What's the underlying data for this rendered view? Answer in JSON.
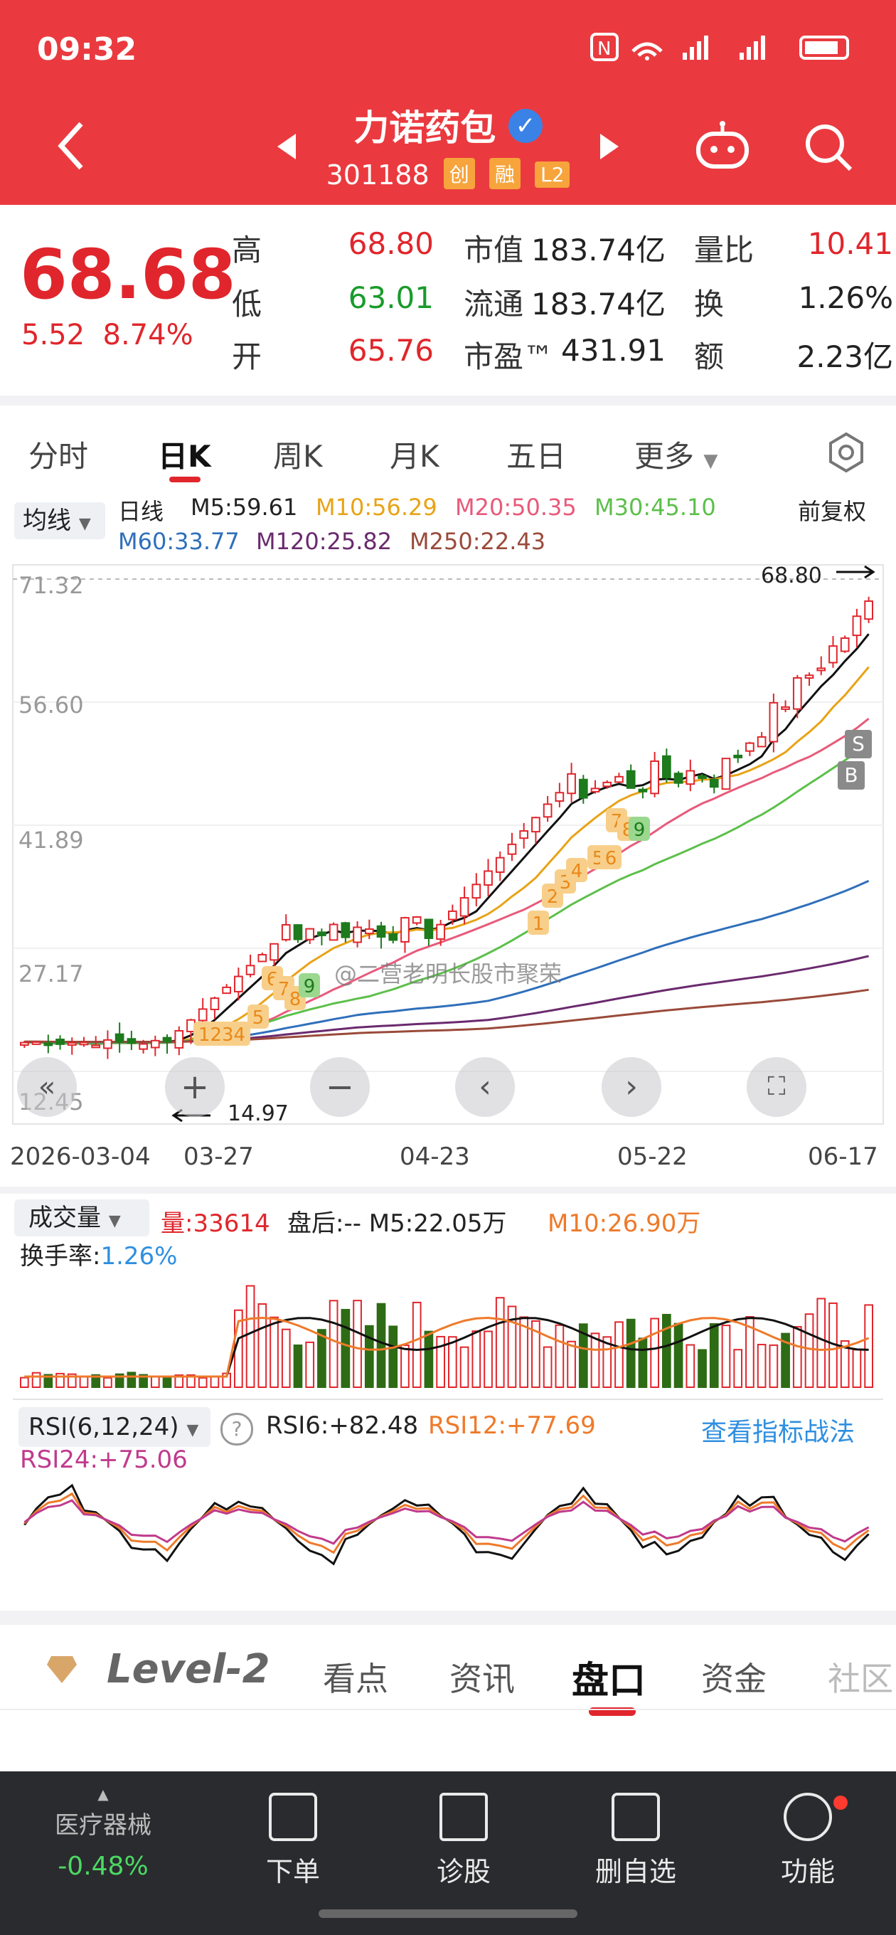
{
  "status": {
    "time": "09:32"
  },
  "header": {
    "name": "力诺药包",
    "code": "301188",
    "tags": [
      "创",
      "融",
      "L2"
    ]
  },
  "quote": {
    "price": "68.68",
    "change": "5.52",
    "change_pct": "8.74%",
    "rows": [
      {
        "l1": "高",
        "v1": "68.80",
        "l2": "市值",
        "v2": "183.74亿",
        "l3": "量比",
        "v3": "10.41"
      },
      {
        "l1": "低",
        "v1": "63.01",
        "l2": "流通",
        "v2": "183.74亿",
        "l3": "换",
        "v3": "1.26%"
      },
      {
        "l1": "开",
        "v1": "65.76",
        "l2": "市盈™",
        "v2": "431.91",
        "l3": "额",
        "v3": "2.23亿"
      }
    ]
  },
  "tabs": [
    "分时",
    "日K",
    "周K",
    "月K",
    "五日",
    "更多"
  ],
  "kline": {
    "ma_selector": "均线",
    "period": "日线",
    "adjust": "前复权",
    "ma": [
      {
        "label": "M5:59.61",
        "color": "#111111"
      },
      {
        "label": "M10:56.29",
        "color": "#e8a317"
      },
      {
        "label": "M20:50.35",
        "color": "#e85a7a"
      },
      {
        "label": "M30:45.10",
        "color": "#5cc04a"
      },
      {
        "label": "M60:33.77",
        "color": "#2f6fba"
      },
      {
        "label": "M120:25.82",
        "color": "#6a2a6e"
      },
      {
        "label": "M250:22.43",
        "color": "#9a4a3a"
      }
    ],
    "y_ticks": [
      "71.32",
      "56.60",
      "41.89",
      "27.17",
      "12.45"
    ],
    "high_marker": "68.80",
    "low_marker": "14.97",
    "watermark": "@二营老明长股市聚荣",
    "dates": [
      "2026-03-04",
      "03-27",
      "04-23",
      "05-22",
      "06-17"
    ],
    "signals": {
      "sell": "S",
      "buy": "B"
    },
    "seq_labels": [
      "1234",
      "5",
      "6",
      "7",
      "8",
      "9",
      "1",
      "2",
      "3",
      "4",
      "5",
      "6",
      "7",
      "8",
      "9"
    ]
  },
  "volume": {
    "selector": "成交量",
    "vol": "量:33614",
    "after": "盘后:-- M5:22.05万",
    "m10": "M10:26.90万",
    "turnover_label": "换手率:",
    "turnover_val": "1.26%"
  },
  "rsi": {
    "selector": "RSI(6,12,24)",
    "rsi6": "RSI6:+82.48",
    "rsi12": "RSI12:+77.69",
    "rsi24": "RSI24:+75.06",
    "link": "查看指标战法"
  },
  "subtabs": [
    "Level-2",
    "看点",
    "资讯",
    "盘口",
    "资金",
    "社区"
  ],
  "bottom_nav": {
    "sector": "医疗器械",
    "sector_chg": "-0.48%",
    "items": [
      "下单",
      "诊股",
      "删自选",
      "功能"
    ]
  }
}
